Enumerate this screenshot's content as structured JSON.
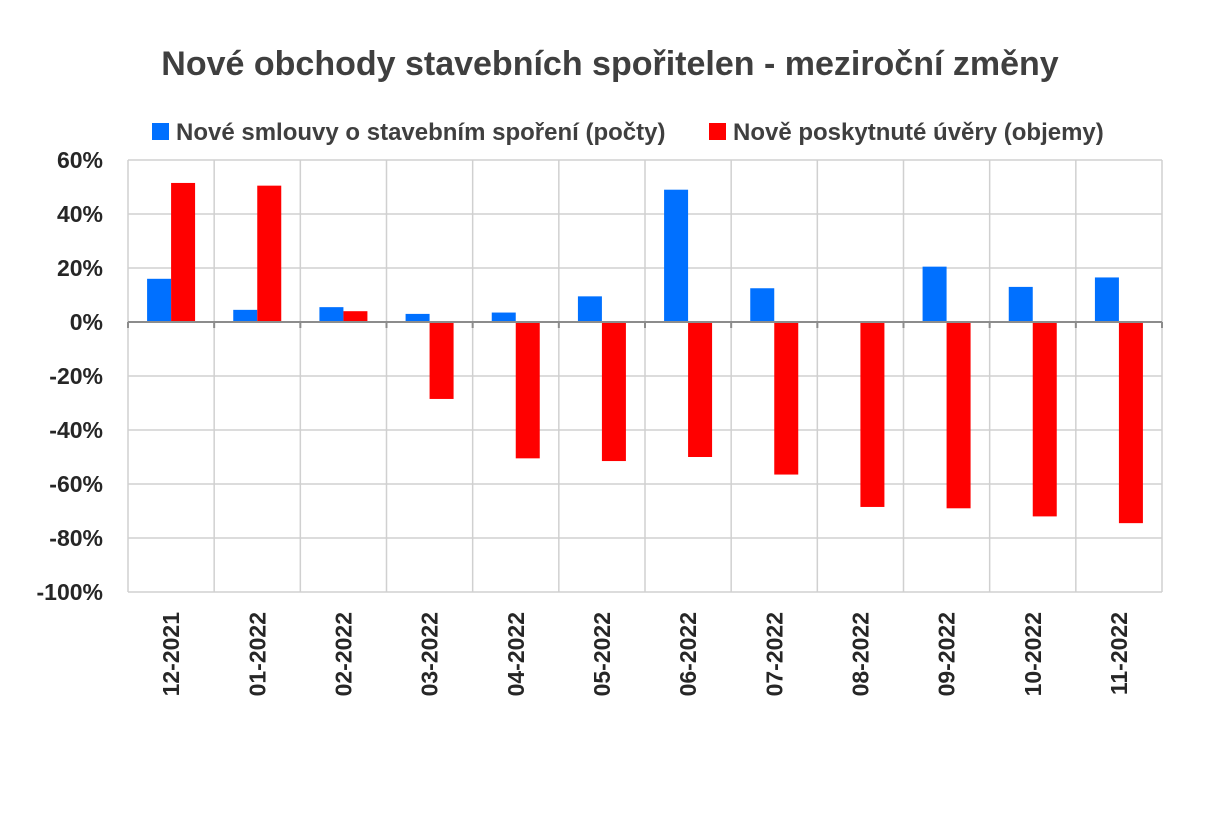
{
  "chart_data": {
    "type": "bar",
    "title": "Nové obchody stavebních spořitelen - meziroční změny",
    "categories": [
      "12-2021",
      "01-2022",
      "02-2022",
      "03-2022",
      "04-2022",
      "05-2022",
      "06-2022",
      "07-2022",
      "08-2022",
      "09-2022",
      "10-2022",
      "11-2022"
    ],
    "series": [
      {
        "name": "Nové smlouvy o stavebním spoření (počty)",
        "color": "#0070ff",
        "values": [
          16,
          4.5,
          5.5,
          3,
          3.5,
          9.5,
          49,
          12.5,
          0,
          20.5,
          13,
          16.5
        ]
      },
      {
        "name": "Nově poskytnuté úvěry (objemy)",
        "color": "#ff0000",
        "values": [
          51.5,
          50.5,
          4,
          -28.5,
          -50.5,
          -51.5,
          -50,
          -56.5,
          -68.5,
          -69,
          -72,
          -74.5
        ]
      }
    ],
    "ylim": [
      -100,
      60
    ],
    "yticks": [
      60,
      40,
      20,
      0,
      -20,
      -40,
      -60,
      -80,
      -100
    ],
    "ytick_labels": [
      "60%",
      "40%",
      "20%",
      "0%",
      "-20%",
      "-40%",
      "-60%",
      "-80%",
      "-100%"
    ],
    "grid": true,
    "legend_position": "top",
    "xlabel": "",
    "ylabel": ""
  }
}
